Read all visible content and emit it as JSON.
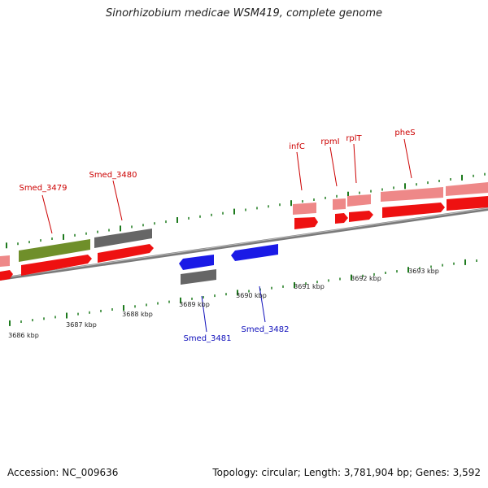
{
  "header": {
    "title": "Sinorhizobium medicae WSM419, complete genome"
  },
  "footer": {
    "accession": "Accession: NC_009636",
    "summary": "Topology: circular; Length: 3,781,904 bp; Genes: 3,592"
  },
  "colors": {
    "backbone": "#7a7a7a",
    "tick": "#1d7a1d",
    "cds_forward": "#ee1111",
    "cds_forward_light": "#ee8888",
    "cds_reverse": "#1a1ae6",
    "gene_gray": "#666666",
    "gene_olive": "#6f8f2a",
    "label_forward": "#cc0000",
    "label_reverse": "#1010bb"
  },
  "axis_labels": [
    "3686 kbp",
    "3687 kbp",
    "3688 kbp",
    "3689 kbp",
    "3690 kbp",
    "3691 kbp",
    "3692 kbp",
    "3693 kbp"
  ],
  "gene_labels": {
    "forward": [
      "Smed_3479",
      "Smed_3480",
      "infC",
      "rpmI",
      "rplT",
      "pheS"
    ],
    "reverse": [
      "Smed_3481",
      "Smed_3482"
    ]
  }
}
